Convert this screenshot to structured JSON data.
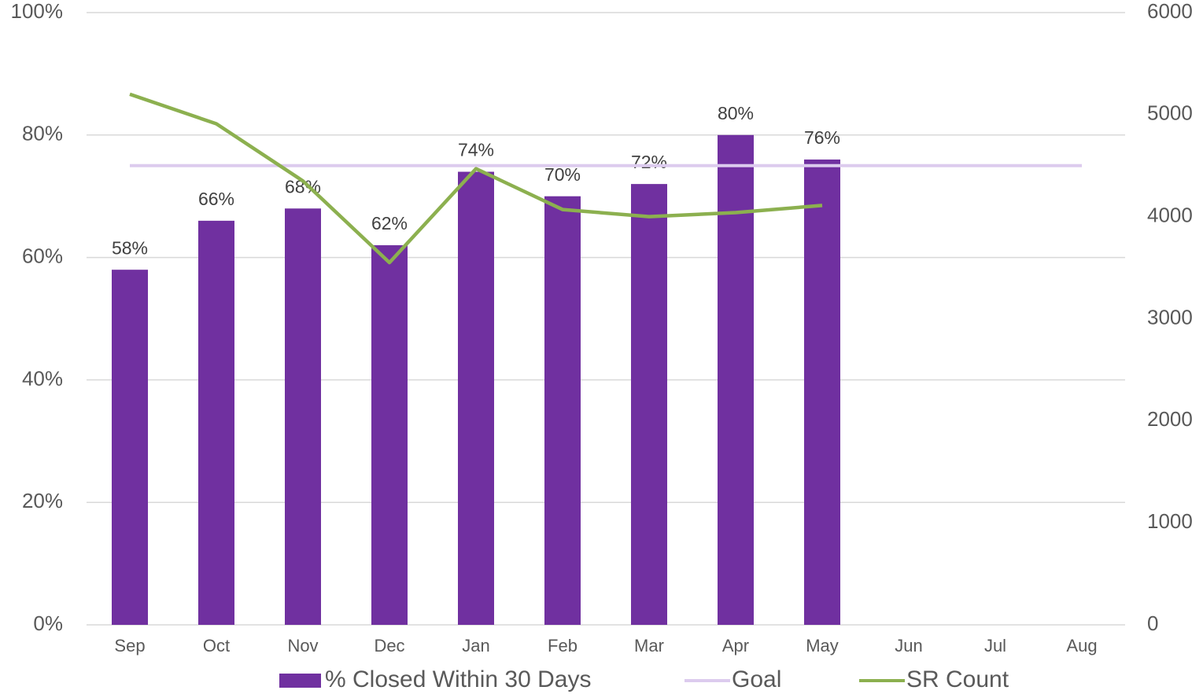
{
  "chart_data": {
    "type": "bar",
    "categories": [
      "Sep",
      "Oct",
      "Nov",
      "Dec",
      "Jan",
      "Feb",
      "Mar",
      "Apr",
      "May",
      "Jun",
      "Jul",
      "Aug"
    ],
    "series": [
      {
        "name": "% Closed Within 30 Days",
        "type": "bar",
        "color": "#7030a0",
        "values": [
          58,
          66,
          68,
          62,
          74,
          70,
          72,
          80,
          76,
          null,
          null,
          null
        ],
        "value_labels": [
          "58%",
          "66%",
          "68%",
          "62%",
          "74%",
          "70%",
          "72%",
          "80%",
          "76%",
          null,
          null,
          null
        ]
      },
      {
        "name": "Goal",
        "type": "line",
        "color": "#dccbee",
        "values": [
          75,
          75,
          75,
          75,
          75,
          75,
          75,
          75,
          75,
          75,
          75,
          75
        ]
      },
      {
        "name": "SR Count",
        "type": "line",
        "axis": "y2",
        "color": "#8cb04f",
        "values": [
          5200,
          4910,
          4350,
          3550,
          4470,
          4070,
          4000,
          4040,
          4110,
          null,
          null,
          null
        ]
      }
    ],
    "ylim": [
      0,
      100
    ],
    "yticks": [
      {
        "value": 0,
        "label": "0%"
      },
      {
        "value": 20,
        "label": "20%"
      },
      {
        "value": 40,
        "label": "40%"
      },
      {
        "value": 60,
        "label": "60%"
      },
      {
        "value": 80,
        "label": "80%"
      },
      {
        "value": 100,
        "label": "100%"
      }
    ],
    "y2lim": [
      0,
      6000
    ],
    "y2ticks": [
      0,
      1000,
      2000,
      3000,
      4000,
      5000,
      6000
    ],
    "grid": true,
    "legend": "bottom"
  }
}
